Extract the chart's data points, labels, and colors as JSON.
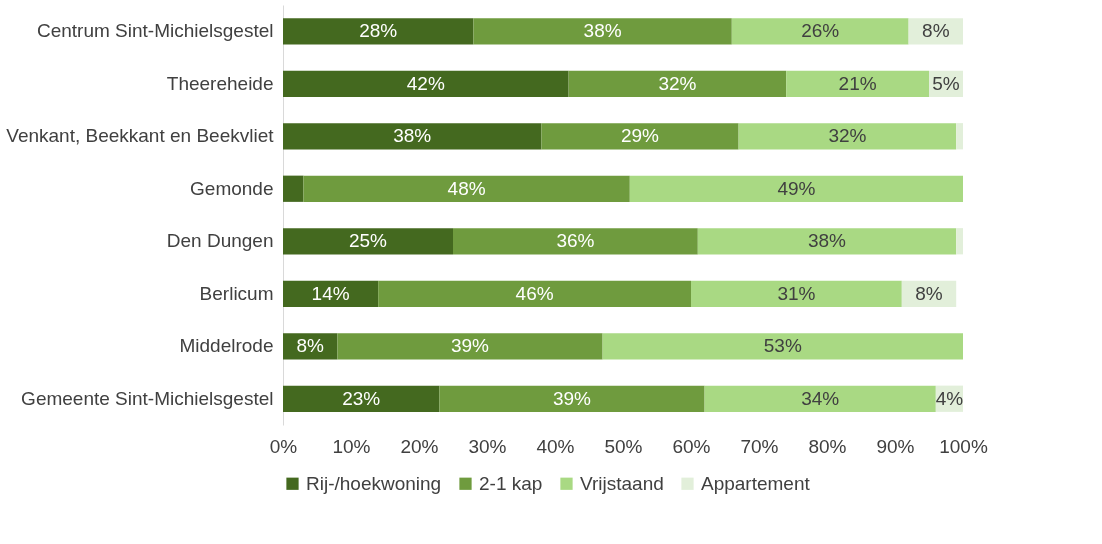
{
  "chart_data": {
    "type": "bar",
    "orientation": "horizontal",
    "stacked": true,
    "categories": [
      "Centrum Sint-Michielsgestel",
      "Theereheide",
      "Venkant, Beekkant en Beekvliet",
      "Gemonde",
      "Den Dungen",
      "Berlicum",
      "Middelrode",
      "Gemeente Sint-Michielsgestel"
    ],
    "series": [
      {
        "name": "Rij-/hoekwoning",
        "color": "#44691f",
        "values": [
          28,
          42,
          38,
          3,
          25,
          14,
          8,
          23
        ],
        "value_labels": [
          "28%",
          "42%",
          "38%",
          null,
          "25%",
          "14%",
          "8%",
          "23%"
        ]
      },
      {
        "name": "2-1 kap",
        "color": "#6f9b3e",
        "values": [
          38,
          32,
          29,
          48,
          36,
          46,
          39,
          39
        ],
        "value_labels": [
          "38%",
          "32%",
          "29%",
          "48%",
          "36%",
          "46%",
          "39%",
          "39%"
        ]
      },
      {
        "name": "Vrijstaand",
        "color": "#a9d983",
        "values": [
          26,
          21,
          32,
          49,
          38,
          31,
          53,
          34
        ],
        "value_labels": [
          "26%",
          "21%",
          "32%",
          "49%",
          "38%",
          "31%",
          "53%",
          "34%"
        ]
      },
      {
        "name": "Appartement",
        "color": "#e2efda",
        "values": [
          8,
          5,
          1,
          null,
          1,
          8,
          null,
          4
        ],
        "value_labels": [
          "8%",
          "5%",
          null,
          null,
          null,
          "8%",
          null,
          "4%"
        ]
      }
    ],
    "xlim": [
      0,
      100
    ],
    "xticks": [
      {
        "value": 0,
        "label": "0%"
      },
      {
        "value": 10,
        "label": "10%"
      },
      {
        "value": 20,
        "label": "20%"
      },
      {
        "value": 30,
        "label": "30%"
      },
      {
        "value": 40,
        "label": "40%"
      },
      {
        "value": 50,
        "label": "50%"
      },
      {
        "value": 60,
        "label": "60%"
      },
      {
        "value": 70,
        "label": "70%"
      },
      {
        "value": 80,
        "label": "80%"
      },
      {
        "value": 90,
        "label": "90%"
      },
      {
        "value": 100,
        "label": "100%"
      }
    ],
    "grid": false,
    "legend": "bottom"
  }
}
